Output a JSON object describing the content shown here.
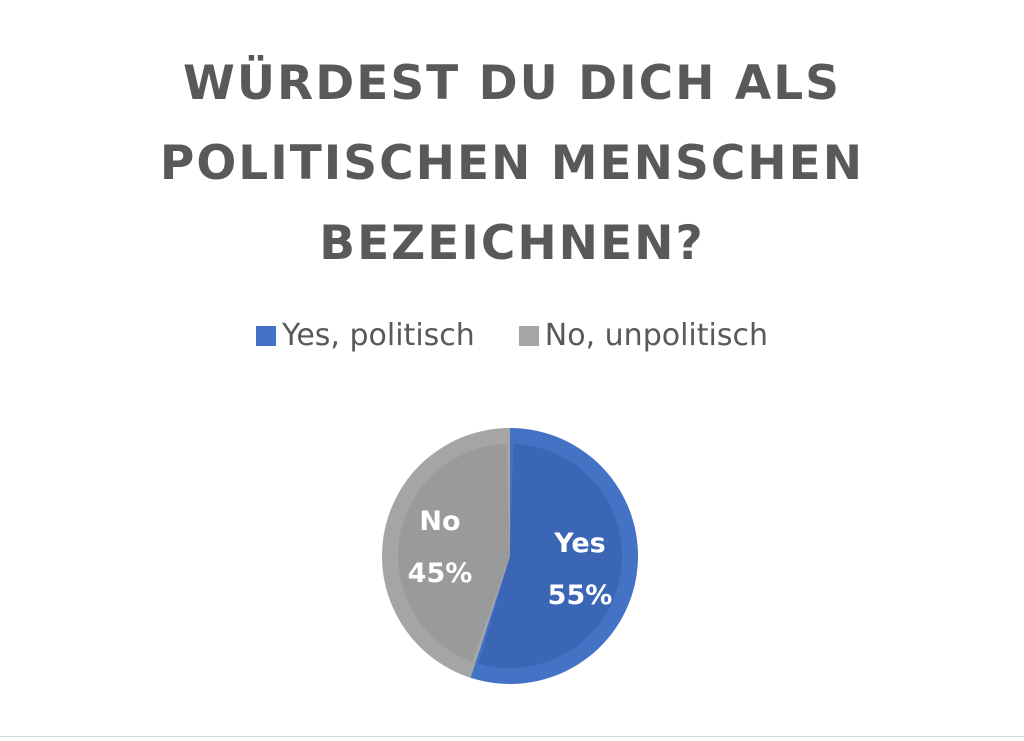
{
  "chart_data": {
    "type": "pie",
    "title_lines": [
      "WÜRDEST DU DICH ALS",
      "POLITISCHEN MENSCHEN",
      "BEZEICHNEN?"
    ],
    "legend_position": "top",
    "slices": [
      {
        "name": "Yes, politisch",
        "short_label": "Yes",
        "value": 55,
        "value_label": "55%",
        "color": "#4472C4",
        "inner_color": "#3B66B5"
      },
      {
        "name": "No, unpolitisch",
        "short_label": "No",
        "value": 45,
        "value_label": "45%",
        "color": "#A5A5A5",
        "inner_color": "#9A9A9A"
      }
    ]
  }
}
